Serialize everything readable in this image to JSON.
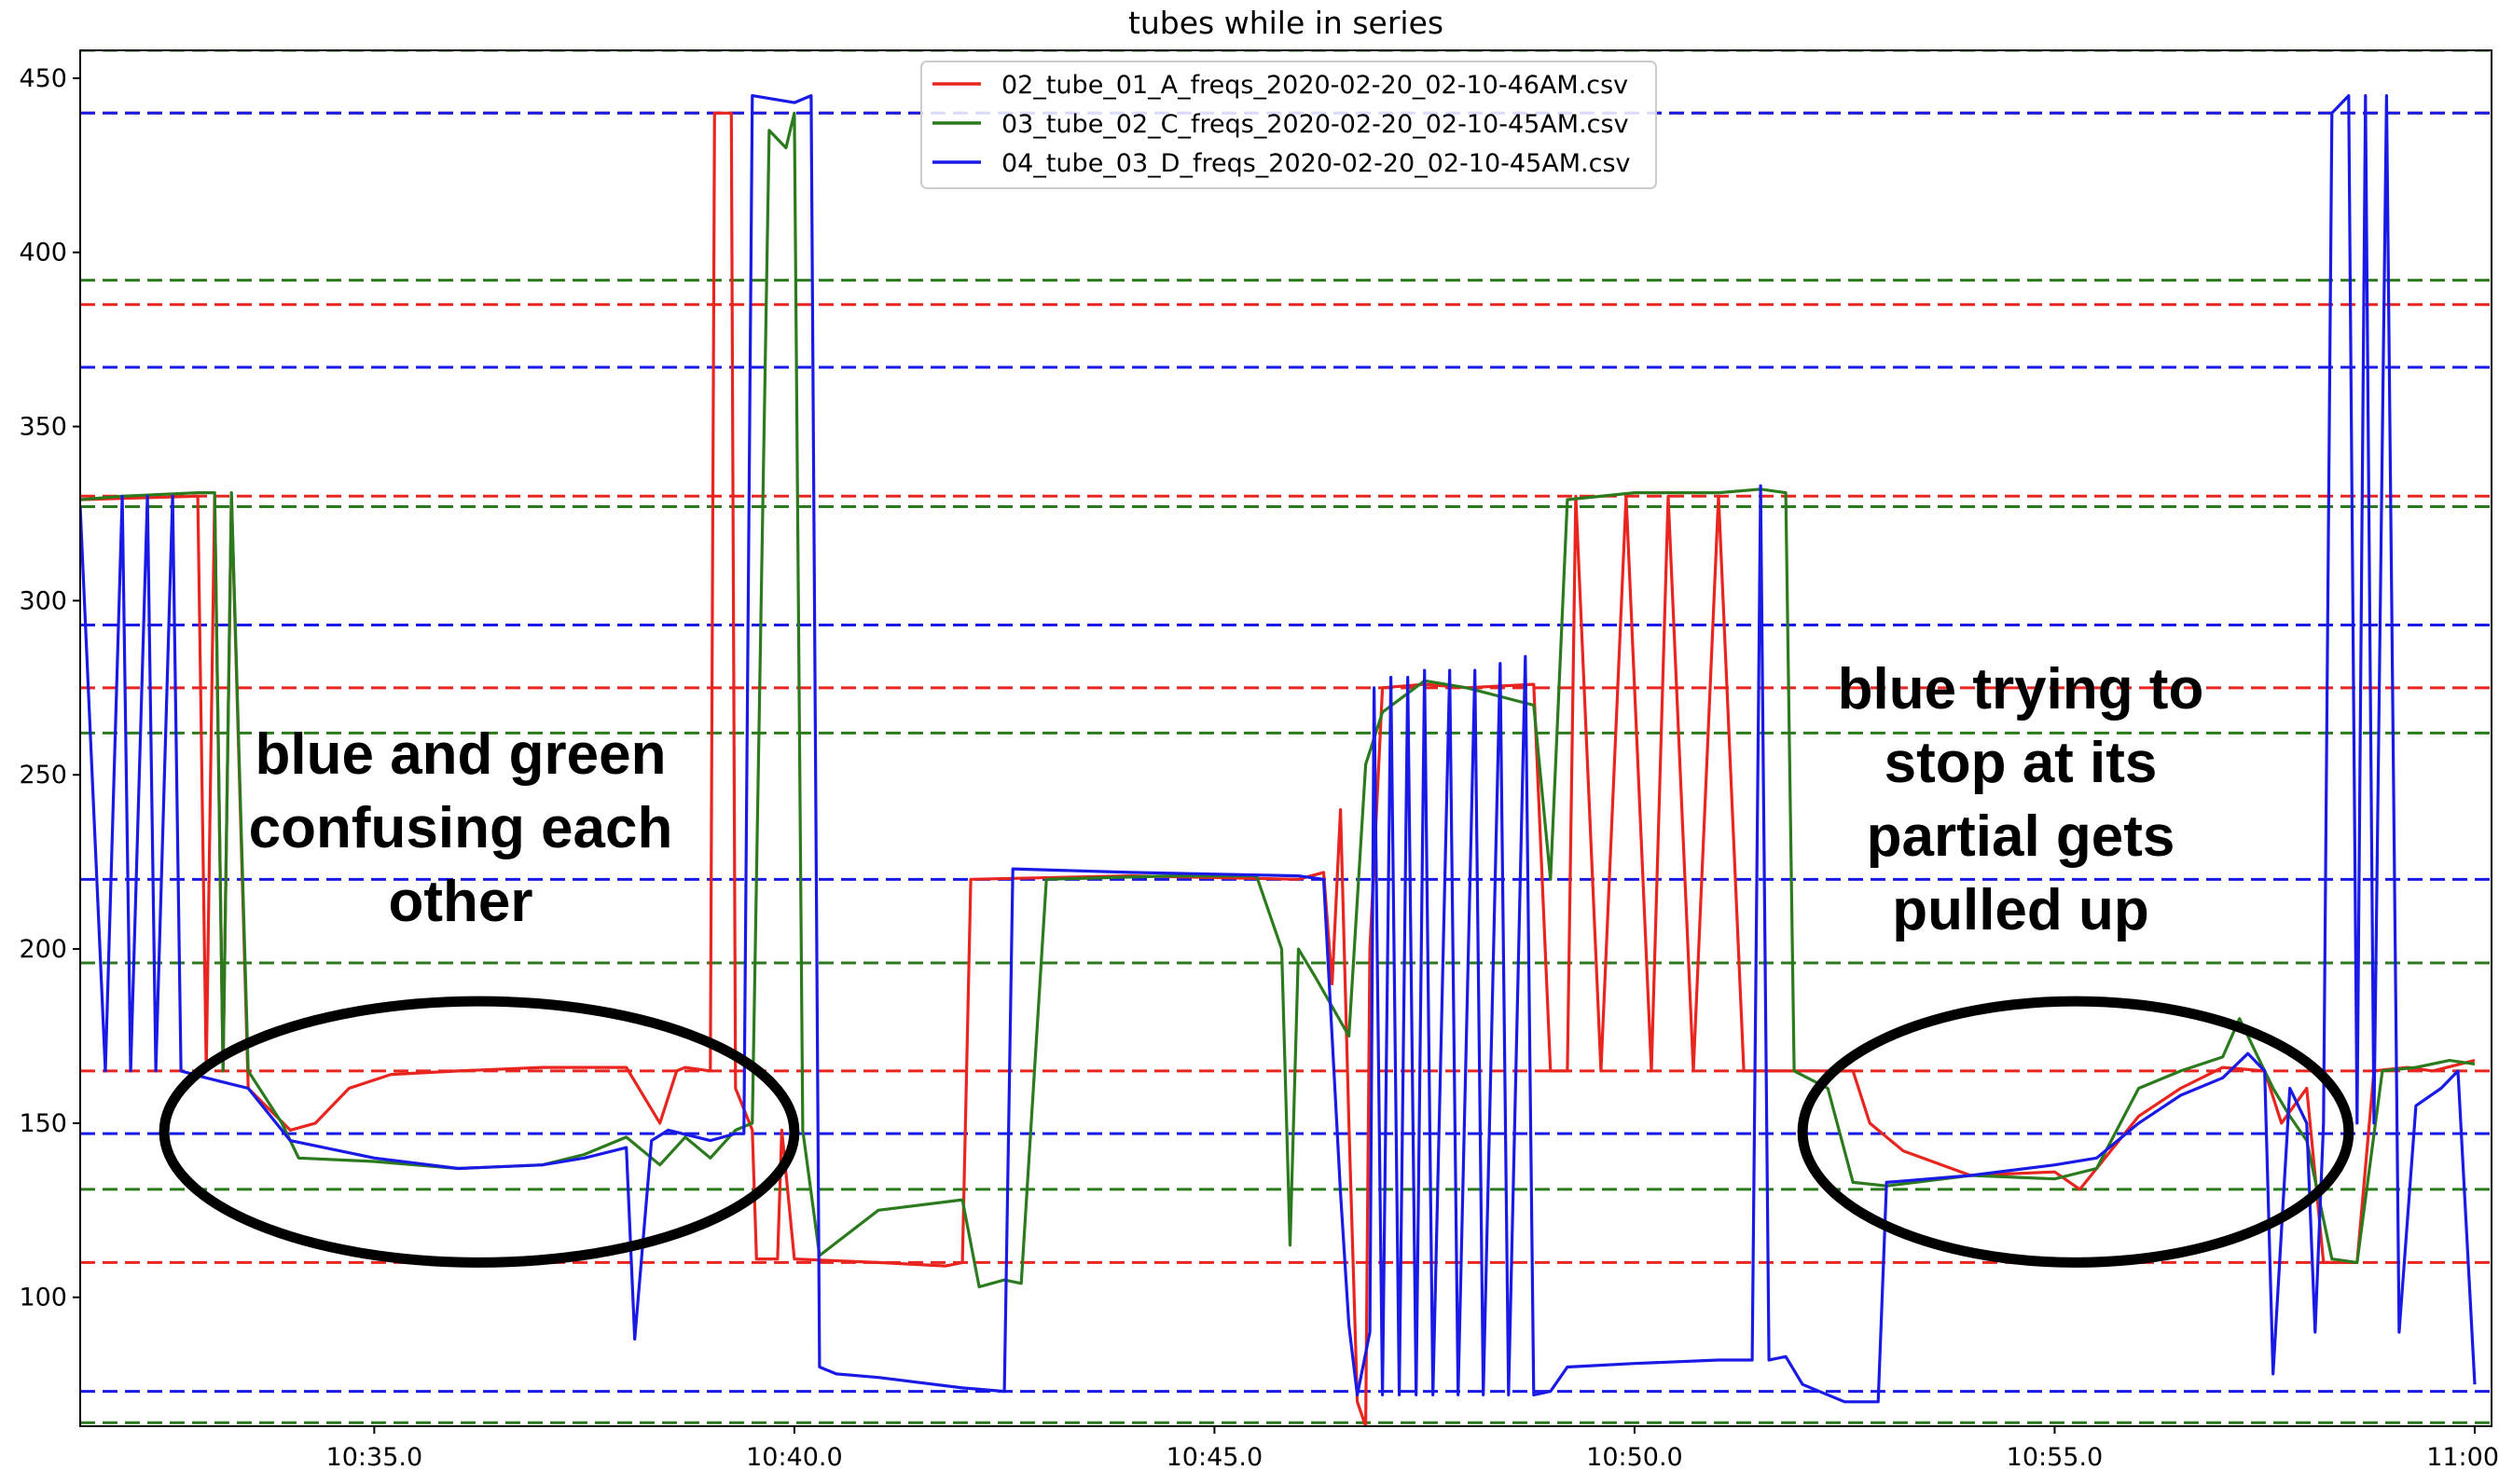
{
  "chart_data": {
    "type": "line",
    "title": "tubes while in series",
    "xlabel": "",
    "ylabel": "",
    "x_unit": "minutes",
    "xlim": [
      "10:31.5",
      "11:00.2"
    ],
    "ylim": [
      63,
      458
    ],
    "x_ticks": [
      "10:35.0",
      "10:40.0",
      "10:45.0",
      "10:50.0",
      "10:55.0",
      "11:00.0"
    ],
    "y_ticks": [
      100,
      150,
      200,
      250,
      300,
      350,
      400,
      450
    ],
    "grid": false,
    "legend": "top-center",
    "series": [
      {
        "name": "02_tube_01_A_freqs_2020-02-20_02-10-46AM.csv",
        "color": "#e8251f",
        "points": [
          [
            "10:31.5",
            329
          ],
          [
            "10:32.9",
            330
          ],
          [
            "10:33.0",
            165
          ],
          [
            "10:33.1",
            330
          ],
          [
            "10:33.2",
            165
          ],
          [
            "10:33.3",
            330
          ],
          [
            "10:33.5",
            160
          ],
          [
            "10:34.0",
            148
          ],
          [
            "10:34.3",
            150
          ],
          [
            "10:34.7",
            160
          ],
          [
            "10:35.2",
            164
          ],
          [
            "10:36.0",
            165
          ],
          [
            "10:37.0",
            166
          ],
          [
            "10:38.0",
            166
          ],
          [
            "10:38.4",
            150
          ],
          [
            "10:38.6",
            165
          ],
          [
            "10:38.7",
            166
          ],
          [
            "10:39.0",
            165
          ],
          [
            "10:39.05",
            440
          ],
          [
            "10:39.25",
            440
          ],
          [
            "10:39.3",
            160
          ],
          [
            "10:39.5",
            148
          ],
          [
            "10:39.55",
            111
          ],
          [
            "10:39.8",
            111
          ],
          [
            "10:39.85",
            148
          ],
          [
            "10:40.0",
            111
          ],
          [
            "10:41.0",
            110
          ],
          [
            "10:41.8",
            109
          ],
          [
            "10:42.0",
            110
          ],
          [
            "10:42.1",
            220
          ],
          [
            "10:44.0",
            221
          ],
          [
            "10:46.0",
            220
          ],
          [
            "10:46.3",
            222
          ],
          [
            "10:46.4",
            190
          ],
          [
            "10:46.5",
            240
          ],
          [
            "10:46.6",
            150
          ],
          [
            "10:46.7",
            70
          ],
          [
            "10:46.8",
            63
          ],
          [
            "10:46.85",
            200
          ],
          [
            "10:47.0",
            275
          ],
          [
            "10:47.5",
            276
          ],
          [
            "10:48.0",
            275
          ],
          [
            "10:48.8",
            276
          ],
          [
            "10:49.0",
            165
          ],
          [
            "10:49.2",
            165
          ],
          [
            "10:49.3",
            330
          ],
          [
            "10:49.6",
            165
          ],
          [
            "10:49.9",
            330
          ],
          [
            "10:50.2",
            165
          ],
          [
            "10:50.4",
            330
          ],
          [
            "10:50.7",
            165
          ],
          [
            "10:51.0",
            330
          ],
          [
            "10:51.3",
            165
          ],
          [
            "10:51.7",
            165
          ],
          [
            "10:52.6",
            165
          ],
          [
            "10:52.8",
            150
          ],
          [
            "10:53.2",
            142
          ],
          [
            "10:54.0",
            135
          ],
          [
            "10:55.0",
            136
          ],
          [
            "10:55.3",
            131
          ],
          [
            "10:55.6",
            140
          ],
          [
            "10:56.0",
            152
          ],
          [
            "10:56.5",
            160
          ],
          [
            "10:57.0",
            166
          ],
          [
            "10:57.5",
            165
          ],
          [
            "10:57.7",
            150
          ],
          [
            "10:58.0",
            160
          ],
          [
            "10:58.2",
            110
          ],
          [
            "10:58.6",
            110
          ],
          [
            "10:58.8",
            165
          ],
          [
            "10:59.2",
            166
          ],
          [
            "10:59.5",
            165
          ],
          [
            "11:00.0",
            168
          ]
        ]
      },
      {
        "name": "03_tube_02_C_freqs_2020-02-20_02-10-45AM.csv",
        "color": "#2c7a1e",
        "points": [
          [
            "10:31.5",
            329
          ],
          [
            "10:32.0",
            330
          ],
          [
            "10:32.9",
            331
          ],
          [
            "10:33.1",
            331
          ],
          [
            "10:33.2",
            165
          ],
          [
            "10:33.3",
            331
          ],
          [
            "10:33.5",
            165
          ],
          [
            "10:33.9",
            150
          ],
          [
            "10:34.1",
            140
          ],
          [
            "10:35.0",
            139
          ],
          [
            "10:36.0",
            137
          ],
          [
            "10:37.0",
            138
          ],
          [
            "10:37.5",
            141
          ],
          [
            "10:38.0",
            146
          ],
          [
            "10:38.4",
            138
          ],
          [
            "10:38.7",
            146
          ],
          [
            "10:39.0",
            140
          ],
          [
            "10:39.3",
            148
          ],
          [
            "10:39.5",
            150
          ],
          [
            "10:39.7",
            435
          ],
          [
            "10:39.9",
            430
          ],
          [
            "10:40.0",
            440
          ],
          [
            "10:40.1",
            148
          ],
          [
            "10:40.3",
            112
          ],
          [
            "10:41.0",
            125
          ],
          [
            "10:42.0",
            128
          ],
          [
            "10:42.2",
            103
          ],
          [
            "10:42.5",
            105
          ],
          [
            "10:42.7",
            104
          ],
          [
            "10:43.0",
            220
          ],
          [
            "10:44.5",
            221
          ],
          [
            "10:45.5",
            221
          ],
          [
            "10:45.8",
            200
          ],
          [
            "10:45.9",
            115
          ],
          [
            "10:46.0",
            200
          ],
          [
            "10:46.2",
            192
          ],
          [
            "10:46.6",
            175
          ],
          [
            "10:46.8",
            253
          ],
          [
            "10:47.0",
            268
          ],
          [
            "10:47.5",
            277
          ],
          [
            "10:48.0",
            275
          ],
          [
            "10:48.8",
            270
          ],
          [
            "10:49.0",
            220
          ],
          [
            "10:49.2",
            329
          ],
          [
            "10:50.0",
            331
          ],
          [
            "10:51.0",
            331
          ],
          [
            "10:51.5",
            332
          ],
          [
            "10:51.8",
            331
          ],
          [
            "10:51.9",
            165
          ],
          [
            "10:52.3",
            160
          ],
          [
            "10:52.6",
            133
          ],
          [
            "10:53.0",
            132
          ],
          [
            "10:54.0",
            135
          ],
          [
            "10:55.0",
            134
          ],
          [
            "10:55.5",
            137
          ],
          [
            "10:56.0",
            160
          ],
          [
            "10:56.5",
            165
          ],
          [
            "10:57.0",
            169
          ],
          [
            "10:57.2",
            180
          ],
          [
            "10:57.4",
            170
          ],
          [
            "10:57.6",
            160
          ],
          [
            "10:57.8",
            152
          ],
          [
            "10:58.0",
            145
          ],
          [
            "10:58.3",
            111
          ],
          [
            "10:58.6",
            110
          ],
          [
            "10:58.9",
            165
          ],
          [
            "10:59.3",
            166
          ],
          [
            "10:59.7",
            168
          ],
          [
            "11:00.0",
            167
          ]
        ]
      },
      {
        "name": "04_tube_03_D_freqs_2020-02-20_02-10-45AM.csv",
        "color": "#1a1ae6",
        "points": [
          [
            "10:31.5",
            327
          ],
          [
            "10:31.8",
            165
          ],
          [
            "10:32.0",
            330
          ],
          [
            "10:32.1",
            165
          ],
          [
            "10:32.3",
            330
          ],
          [
            "10:32.4",
            165
          ],
          [
            "10:32.6",
            330
          ],
          [
            "10:32.7",
            165
          ],
          [
            "10:33.0",
            163
          ],
          [
            "10:33.5",
            160
          ],
          [
            "10:34.0",
            145
          ],
          [
            "10:35.0",
            140
          ],
          [
            "10:36.0",
            137
          ],
          [
            "10:37.0",
            138
          ],
          [
            "10:37.5",
            140
          ],
          [
            "10:38.0",
            143
          ],
          [
            "10:38.1",
            88
          ],
          [
            "10:38.3",
            145
          ],
          [
            "10:38.5",
            148
          ],
          [
            "10:39.0",
            145
          ],
          [
            "10:39.3",
            147
          ],
          [
            "10:39.4",
            147
          ],
          [
            "10:39.5",
            445
          ],
          [
            "10:40.0",
            443
          ],
          [
            "10:40.2",
            445
          ],
          [
            "10:40.3",
            80
          ],
          [
            "10:40.5",
            78
          ],
          [
            "10:41.0",
            77
          ],
          [
            "10:42.0",
            74
          ],
          [
            "10:42.5",
            73
          ],
          [
            "10:42.6",
            223
          ],
          [
            "10:44.0",
            222
          ],
          [
            "10:46.0",
            221
          ],
          [
            "10:46.3",
            220
          ],
          [
            "10:46.5",
            130
          ],
          [
            "10:46.6",
            92
          ],
          [
            "10:46.7",
            72
          ],
          [
            "10:46.85",
            90
          ],
          [
            "10:46.9",
            275
          ],
          [
            "10:47.0",
            72
          ],
          [
            "10:47.1",
            278
          ],
          [
            "10:47.2",
            72
          ],
          [
            "10:47.3",
            278
          ],
          [
            "10:47.4",
            72
          ],
          [
            "10:47.5",
            280
          ],
          [
            "10:47.6",
            72
          ],
          [
            "10:47.8",
            280
          ],
          [
            "10:47.9",
            72
          ],
          [
            "10:48.1",
            280
          ],
          [
            "10:48.2",
            72
          ],
          [
            "10:48.4",
            282
          ],
          [
            "10:48.5",
            72
          ],
          [
            "10:48.7",
            284
          ],
          [
            "10:48.8",
            72
          ],
          [
            "10:49.0",
            73
          ],
          [
            "10:49.2",
            80
          ],
          [
            "10:50.0",
            81
          ],
          [
            "10:51.0",
            82
          ],
          [
            "10:51.4",
            82
          ],
          [
            "10:51.5",
            333
          ],
          [
            "10:51.6",
            82
          ],
          [
            "10:51.8",
            83
          ],
          [
            "10:52.0",
            75
          ],
          [
            "10:52.5",
            70
          ],
          [
            "10:52.9",
            70
          ],
          [
            "10:53.0",
            133
          ],
          [
            "10:54.0",
            135
          ],
          [
            "10:55.0",
            138
          ],
          [
            "10:55.5",
            140
          ],
          [
            "10:56.0",
            150
          ],
          [
            "10:56.5",
            158
          ],
          [
            "10:57.0",
            163
          ],
          [
            "10:57.3",
            170
          ],
          [
            "10:57.5",
            165
          ],
          [
            "10:57.6",
            78
          ],
          [
            "10:57.8",
            160
          ],
          [
            "10:58.0",
            150
          ],
          [
            "10:58.1",
            90
          ],
          [
            "10:58.2",
            150
          ],
          [
            "10:58.3",
            440
          ],
          [
            "10:58.5",
            445
          ],
          [
            "10:58.6",
            150
          ],
          [
            "10:58.7",
            445
          ],
          [
            "10:58.8",
            150
          ],
          [
            "10:58.95",
            445
          ],
          [
            "10:59.1",
            90
          ],
          [
            "10:59.3",
            155
          ],
          [
            "10:59.6",
            160
          ],
          [
            "10:59.8",
            165
          ],
          [
            "11:00.0",
            75
          ]
        ]
      }
    ],
    "reference_lines": [
      {
        "color": "#e8251f",
        "y": [
          110,
          165,
          275,
          330,
          385,
          440
        ]
      },
      {
        "color": "#2c7a1e",
        "y": [
          64,
          131,
          196,
          262,
          327,
          392,
          458
        ]
      },
      {
        "color": "#1a1ae6",
        "y": [
          73,
          147,
          220,
          293,
          367,
          440
        ]
      }
    ],
    "annotations": [
      {
        "lines": [
          "blue and green",
          "confusing each",
          "other"
        ],
        "encircles": {
          "x": [
            "10:32.5",
            "10:40.0"
          ],
          "y": [
            110,
            185
          ]
        }
      },
      {
        "lines": [
          "blue trying to",
          "stop at its",
          "partial gets",
          "pulled up"
        ],
        "encircles": {
          "x": [
            "10:52.0",
            "10:58.5"
          ],
          "y": [
            110,
            185
          ]
        }
      }
    ]
  }
}
